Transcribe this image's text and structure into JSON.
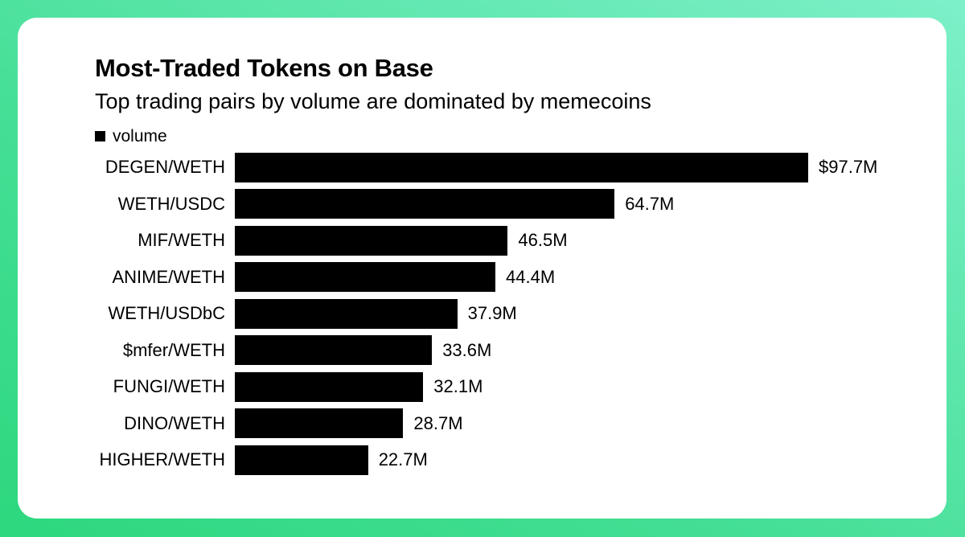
{
  "page": {
    "background_gradient_start": "#2dd87e",
    "background_gradient_end": "#7df0c9",
    "card_background": "#ffffff"
  },
  "chart_data": {
    "type": "bar",
    "orientation": "horizontal",
    "title": "Most-Traded Tokens on Base",
    "subtitle": "Top trading pairs by volume are dominated by memecoins",
    "legend": [
      "volume"
    ],
    "legend_position": "top-left",
    "categories": [
      "DEGEN/WETH",
      "WETH/USDC",
      "MIF/WETH",
      "ANIME/WETH",
      "WETH/USDbC",
      "$mfer/WETH",
      "FUNGI/WETH",
      "DINO/WETH",
      "HIGHER/WETH"
    ],
    "values": [
      97.7,
      64.7,
      46.5,
      44.4,
      37.9,
      33.6,
      32.1,
      28.7,
      22.7
    ],
    "value_labels": [
      "$97.7M",
      "64.7M",
      "46.5M",
      "44.4M",
      "37.9M",
      "33.6M",
      "32.1M",
      "28.7M",
      "22.7M"
    ],
    "xlim": [
      0,
      97.7
    ],
    "grid": false,
    "bar_color": "#000000",
    "text_color": "#000000"
  }
}
